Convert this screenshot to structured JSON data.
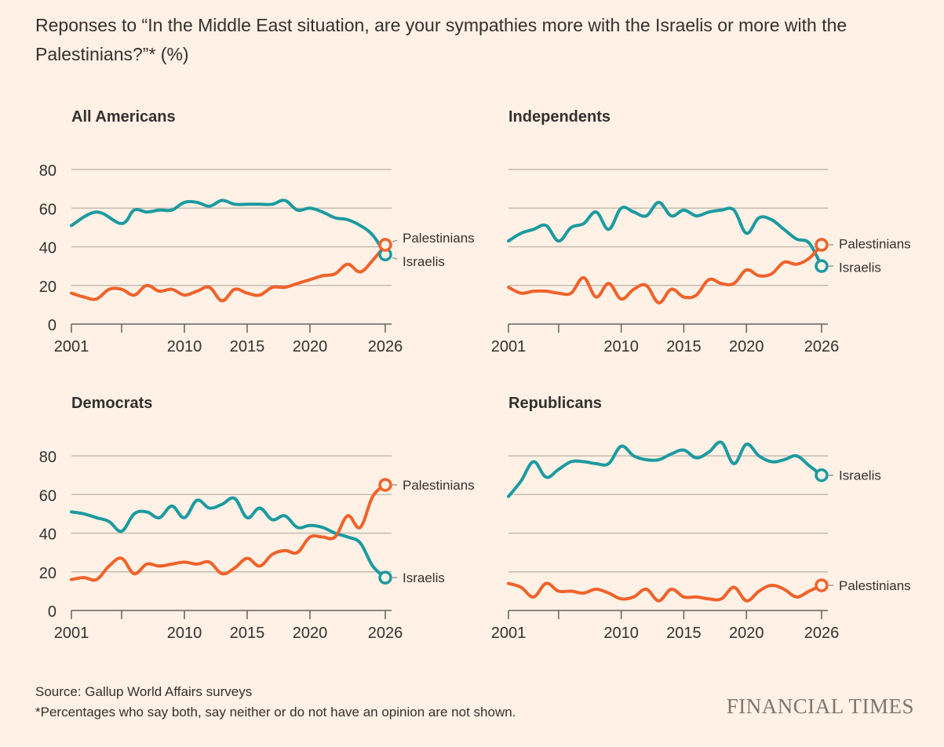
{
  "title": "Reponses to “In the Middle East situation, are your sympathies more with the Israelis or more with the Palestinians?”* (%)",
  "footer": {
    "source": "Source: Gallup World Affairs surveys",
    "note": "*Percentages who say both, say neither or do not have an opinion are not shown."
  },
  "brand": "FINANCIAL TIMES",
  "colors": {
    "israelis": "#1c9aa0",
    "palestinians": "#f0622a",
    "grid": "#c4bbb2",
    "axis": "#66605c",
    "text": "#33302e"
  },
  "chart_data": [
    {
      "type": "line",
      "title": "All Americans",
      "xlim": [
        2001,
        2026
      ],
      "ylim": [
        0,
        80
      ],
      "xticks": [
        2001,
        2005,
        2010,
        2015,
        2020,
        2026
      ],
      "xtick_labels": [
        "2001",
        "",
        "2010",
        "2015",
        "2020",
        "2026"
      ],
      "yticks": [
        0,
        20,
        40,
        60,
        80
      ],
      "show_y_labels": true,
      "series": [
        {
          "name": "Israelis",
          "end_label": "Israelis",
          "x": [
            2001,
            2003,
            2005,
            2006,
            2007,
            2008,
            2009,
            2010,
            2011,
            2012,
            2013,
            2014,
            2015,
            2016,
            2017,
            2018,
            2019,
            2020,
            2021,
            2022,
            2023,
            2024,
            2025,
            2026
          ],
          "values": [
            51,
            58,
            52,
            59,
            58,
            59,
            59,
            63,
            63,
            61,
            64,
            62,
            62,
            62,
            62,
            64,
            59,
            60,
            58,
            55,
            54,
            51,
            46,
            36
          ]
        },
        {
          "name": "Palestinians",
          "end_label": "Palestinians",
          "x": [
            2001,
            2002,
            2003,
            2004,
            2005,
            2006,
            2007,
            2008,
            2009,
            2010,
            2011,
            2012,
            2013,
            2014,
            2015,
            2016,
            2017,
            2018,
            2019,
            2020,
            2021,
            2022,
            2023,
            2024,
            2025,
            2026
          ],
          "values": [
            16,
            14,
            13,
            18,
            18,
            15,
            20,
            17,
            18,
            15,
            17,
            19,
            12,
            18,
            16,
            15,
            19,
            19,
            21,
            23,
            25,
            26,
            31,
            27,
            33,
            41
          ]
        }
      ]
    },
    {
      "type": "line",
      "title": "Independents",
      "xlim": [
        2001,
        2026
      ],
      "ylim": [
        0,
        80
      ],
      "xticks": [
        2001,
        2005,
        2010,
        2015,
        2020,
        2026
      ],
      "xtick_labels": [
        "2001",
        "",
        "2010",
        "2015",
        "2020",
        "2026"
      ],
      "yticks": [
        0,
        20,
        40,
        60,
        80
      ],
      "show_y_labels": false,
      "series": [
        {
          "name": "Israelis",
          "end_label": "Israelis",
          "x": [
            2001,
            2002,
            2003,
            2004,
            2005,
            2006,
            2007,
            2008,
            2009,
            2010,
            2011,
            2012,
            2013,
            2014,
            2015,
            2016,
            2017,
            2018,
            2019,
            2020,
            2021,
            2022,
            2023,
            2024,
            2025,
            2026
          ],
          "values": [
            43,
            47,
            49,
            51,
            43,
            50,
            52,
            58,
            49,
            60,
            58,
            56,
            63,
            56,
            59,
            56,
            58,
            59,
            59,
            47,
            55,
            54,
            49,
            44,
            42,
            30
          ]
        },
        {
          "name": "Palestinians",
          "end_label": "Palestinians",
          "x": [
            2001,
            2002,
            2003,
            2004,
            2005,
            2006,
            2007,
            2008,
            2009,
            2010,
            2011,
            2012,
            2013,
            2014,
            2015,
            2016,
            2017,
            2018,
            2019,
            2020,
            2021,
            2022,
            2023,
            2024,
            2025,
            2026
          ],
          "values": [
            19,
            16,
            17,
            17,
            16,
            16,
            24,
            14,
            21,
            13,
            18,
            20,
            11,
            18,
            14,
            15,
            23,
            21,
            21,
            28,
            25,
            26,
            32,
            31,
            34,
            41
          ]
        }
      ]
    },
    {
      "type": "line",
      "title": "Democrats",
      "xlim": [
        2001,
        2026
      ],
      "ylim": [
        0,
        80
      ],
      "xticks": [
        2001,
        2005,
        2010,
        2015,
        2020,
        2026
      ],
      "xtick_labels": [
        "2001",
        "",
        "2010",
        "2015",
        "2020",
        "2026"
      ],
      "yticks": [
        0,
        20,
        40,
        60,
        80
      ],
      "show_y_labels": true,
      "series": [
        {
          "name": "Israelis",
          "end_label": "Israelis",
          "x": [
            2001,
            2002,
            2003,
            2004,
            2005,
            2006,
            2007,
            2008,
            2009,
            2010,
            2011,
            2012,
            2013,
            2014,
            2015,
            2016,
            2017,
            2018,
            2019,
            2020,
            2021,
            2022,
            2023,
            2024,
            2025,
            2026
          ],
          "values": [
            51,
            50,
            48,
            46,
            41,
            50,
            51,
            48,
            54,
            48,
            57,
            53,
            55,
            58,
            48,
            53,
            47,
            49,
            43,
            44,
            43,
            40,
            38,
            35,
            23,
            17
          ]
        },
        {
          "name": "Palestinians",
          "end_label": "Palestinians",
          "x": [
            2001,
            2002,
            2003,
            2004,
            2005,
            2006,
            2007,
            2008,
            2009,
            2010,
            2011,
            2012,
            2013,
            2014,
            2015,
            2016,
            2017,
            2018,
            2019,
            2020,
            2021,
            2022,
            2023,
            2024,
            2025,
            2026
          ],
          "values": [
            16,
            17,
            16,
            23,
            27,
            19,
            24,
            23,
            24,
            25,
            24,
            25,
            19,
            22,
            27,
            23,
            29,
            31,
            30,
            38,
            38,
            38,
            49,
            43,
            59,
            65
          ]
        }
      ]
    },
    {
      "type": "line",
      "title": "Republicans",
      "xlim": [
        2001,
        2026
      ],
      "ylim": [
        0,
        80
      ],
      "xticks": [
        2001,
        2005,
        2010,
        2015,
        2020,
        2026
      ],
      "xtick_labels": [
        "2001",
        "",
        "2010",
        "2015",
        "2020",
        "2026"
      ],
      "yticks": [
        0,
        20,
        40,
        60,
        80
      ],
      "show_y_labels": false,
      "series": [
        {
          "name": "Israelis",
          "end_label": "Israelis",
          "x": [
            2001,
            2002,
            2003,
            2004,
            2005,
            2006,
            2007,
            2008,
            2009,
            2010,
            2011,
            2012,
            2013,
            2014,
            2015,
            2016,
            2017,
            2018,
            2019,
            2020,
            2021,
            2022,
            2023,
            2024,
            2025,
            2026
          ],
          "values": [
            59,
            67,
            77,
            69,
            73,
            77,
            77,
            76,
            76,
            85,
            80,
            78,
            78,
            81,
            83,
            79,
            82,
            87,
            76,
            86,
            80,
            77,
            78,
            80,
            75,
            70
          ]
        },
        {
          "name": "Palestinians",
          "end_label": "Palestinians",
          "x": [
            2001,
            2002,
            2003,
            2004,
            2005,
            2006,
            2007,
            2008,
            2009,
            2010,
            2011,
            2012,
            2013,
            2014,
            2015,
            2016,
            2017,
            2018,
            2019,
            2020,
            2021,
            2022,
            2023,
            2024,
            2025,
            2026
          ],
          "values": [
            14,
            12,
            7,
            14,
            10,
            10,
            9,
            11,
            9,
            6,
            7,
            11,
            5,
            11,
            7,
            7,
            6,
            6,
            12,
            5,
            10,
            13,
            11,
            7,
            10,
            13
          ]
        }
      ]
    }
  ]
}
